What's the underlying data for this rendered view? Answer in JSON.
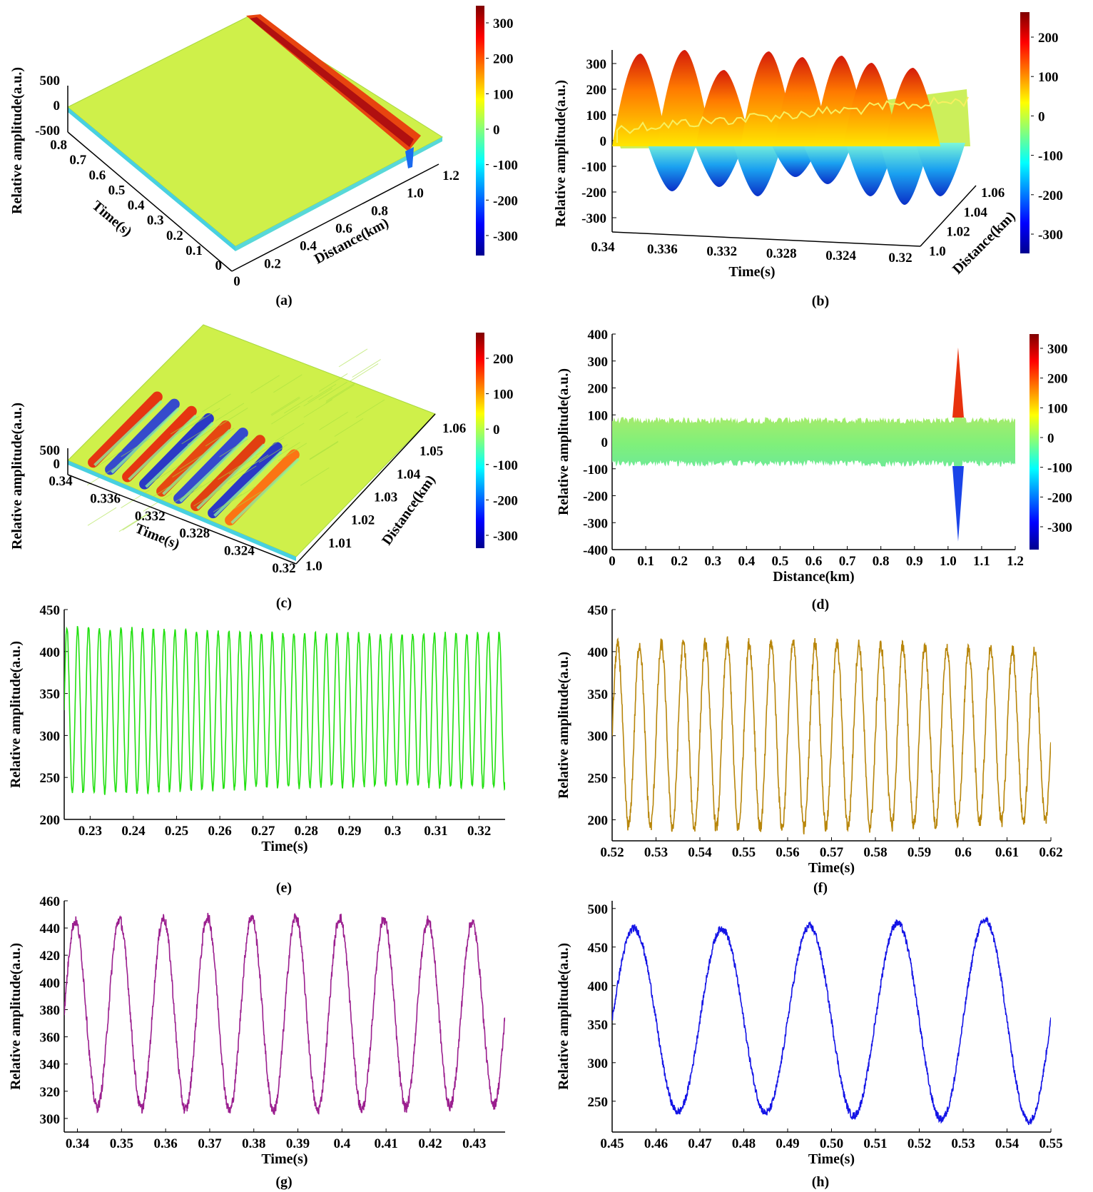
{
  "chart_data": [
    {
      "panel": "(a)",
      "type": "surface3d",
      "ylabel": "Relative amplitude(a.u.)",
      "xlabel": "Distance(km)",
      "zlabel": "Time(s)",
      "amp_ticks": [
        "500",
        "0",
        "-500"
      ],
      "distance_ticks": [
        "0",
        "0.2",
        "0.4",
        "0.6",
        "0.8",
        "1.0",
        "1.2"
      ],
      "time_ticks": [
        "0",
        "0.1",
        "0.2",
        "0.3",
        "0.4",
        "0.5",
        "0.6",
        "0.7",
        "0.8"
      ],
      "colorbar_ticks": [
        "300",
        "200",
        "100",
        "0",
        "-100",
        "-200",
        "-300"
      ],
      "event_distance_km": 1.03
    },
    {
      "panel": "(b)",
      "type": "surface3d",
      "ylabel": "Relative amplitude(a.u.)",
      "xlabel": "Time(s)",
      "zlabel": "Distance(km)",
      "amp_ticks": [
        "300",
        "200",
        "100",
        "0",
        "-100",
        "-200",
        "-300"
      ],
      "time_ticks": [
        "0.34",
        "0.336",
        "0.332",
        "0.328",
        "0.324",
        "0.32"
      ],
      "distance_ticks": [
        "1.0",
        "1.02",
        "1.04",
        "1.06"
      ],
      "colorbar_ticks": [
        "200",
        "100",
        "0",
        "-100",
        "-200",
        "-300"
      ],
      "peak_count": 8
    },
    {
      "panel": "(c)",
      "type": "surface3d",
      "ylabel": "Relative amplitude(a.u.)",
      "xlabel": "Time(s)",
      "zlabel": "Distance(km)",
      "amp_ticks": [
        "500",
        "0"
      ],
      "time_ticks": [
        "0.34",
        "0.336",
        "0.332",
        "0.328",
        "0.324",
        "0.32"
      ],
      "distance_ticks": [
        "1.0",
        "1.01",
        "1.02",
        "1.03",
        "1.04",
        "1.05",
        "1.06"
      ],
      "colorbar_ticks": [
        "200",
        "100",
        "0",
        "-100",
        "-200",
        "-300"
      ],
      "stripe_count": 9
    },
    {
      "panel": "(d)",
      "type": "area",
      "ylabel": "Relative amplitude(a.u.)",
      "xlabel": "Distance(km)",
      "xlim": [
        0,
        1.2
      ],
      "ylim": [
        -400,
        400
      ],
      "xticks": [
        "0",
        "0.1",
        "0.2",
        "0.3",
        "0.4",
        "0.5",
        "0.6",
        "0.7",
        "0.8",
        "0.9",
        "1.0",
        "1.1",
        "1.2"
      ],
      "yticks": [
        "400",
        "300",
        "200",
        "100",
        "0",
        "-100",
        "-200",
        "-300",
        "-400"
      ],
      "colorbar_ticks": [
        "300",
        "200",
        "100",
        "0",
        "-100",
        "-200",
        "-300"
      ],
      "noise_band": [
        -80,
        80
      ],
      "event_distance_km": 1.03,
      "event_peak": 350,
      "event_trough": -370
    },
    {
      "panel": "(e)",
      "type": "line",
      "color": "#22e010",
      "ylabel": "Relative amplitude(a.u.)",
      "xlabel": "Time(s)",
      "xlim": [
        0.224,
        0.326
      ],
      "ylim": [
        200,
        450
      ],
      "xticks": [
        "0.23",
        "0.24",
        "0.25",
        "0.26",
        "0.27",
        "0.28",
        "0.29",
        "0.3",
        "0.31",
        "0.32"
      ],
      "yticks": [
        "450",
        "400",
        "350",
        "300",
        "250",
        "200"
      ],
      "period_s": 0.0025,
      "mean": 330,
      "amplitude": 95,
      "noise": 3
    },
    {
      "panel": "(f)",
      "type": "line",
      "color": "#b8860b",
      "ylabel": "Relative amplitude(a.u.)",
      "xlabel": "Time(s)",
      "xlim": [
        0.52,
        0.62
      ],
      "ylim": [
        175,
        450
      ],
      "xticks": [
        "0.52",
        "0.53",
        "0.54",
        "0.55",
        "0.56",
        "0.57",
        "0.58",
        "0.59",
        "0.6",
        "0.61",
        "0.62"
      ],
      "yticks": [
        "450",
        "400",
        "350",
        "300",
        "250",
        "200"
      ],
      "period_s": 0.005,
      "mean": 300,
      "amplitude": 105,
      "noise": 8
    },
    {
      "panel": "(g)",
      "type": "line",
      "color": "#9b1f8f",
      "ylabel": "Relative amplitude(a.u.)",
      "xlabel": "Time(s)",
      "xlim": [
        0.337,
        0.437
      ],
      "ylim": [
        290,
        460
      ],
      "xticks": [
        "0.34",
        "0.35",
        "0.36",
        "0.37",
        "0.38",
        "0.39",
        "0.4",
        "0.41",
        "0.42",
        "0.43"
      ],
      "yticks": [
        "460",
        "440",
        "420",
        "400",
        "380",
        "360",
        "340",
        "320",
        "300"
      ],
      "period_s": 0.01,
      "mean": 377,
      "amplitude": 68,
      "noise": 4
    },
    {
      "panel": "(h)",
      "type": "line",
      "color": "#1414e6",
      "ylabel": "Relative amplitude(a.u.)",
      "xlabel": "Time(s)",
      "xlim": [
        0.45,
        0.55
      ],
      "ylim": [
        210,
        510
      ],
      "xticks": [
        "0.45",
        "0.46",
        "0.47",
        "0.48",
        "0.49",
        "0.50",
        "0.51",
        "0.52",
        "0.53",
        "0.54",
        "0.55"
      ],
      "yticks": [
        "500",
        "450",
        "400",
        "350",
        "300",
        "250"
      ],
      "period_s": 0.02,
      "mean": 355,
      "amplitude": 125,
      "noise": 5
    }
  ]
}
